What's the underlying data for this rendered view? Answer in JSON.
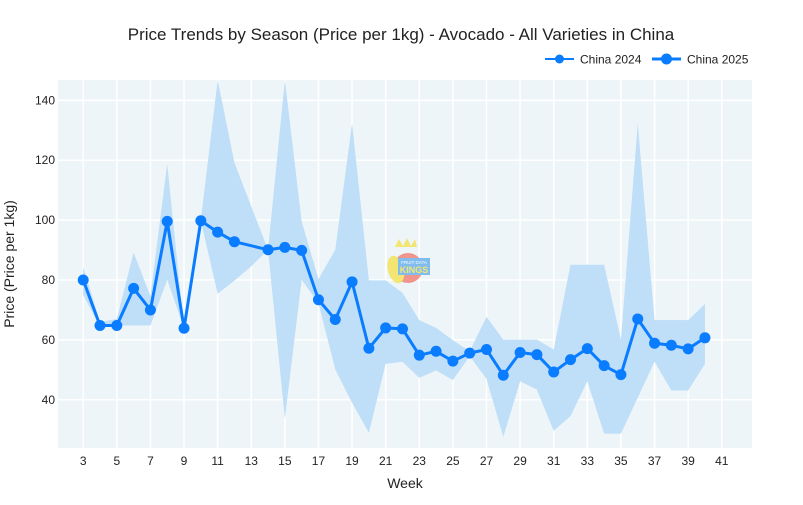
{
  "chart_data": {
    "type": "line",
    "title": "Price Trends by Season (Price per 1kg) - Avocado - All Varieties in China",
    "xlabel": "Week",
    "ylabel": "Price (Price per 1kg)",
    "xlim": [
      1.5,
      42.8
    ],
    "ylim": [
      23.9,
      146.8
    ],
    "x_ticks": [
      3,
      5,
      7,
      9,
      11,
      13,
      15,
      17,
      19,
      21,
      23,
      25,
      27,
      29,
      31,
      33,
      35,
      37,
      39,
      41
    ],
    "y_ticks": [
      40,
      60,
      80,
      100,
      120,
      140
    ],
    "grid": true,
    "legend_position": "top-right",
    "colors": {
      "line": "#0a7cff",
      "band": "#bcdcf7",
      "plot_bg": "#eef5f9",
      "grid": "#ffffff"
    },
    "legend": [
      {
        "name": "China 2024",
        "style": "thin"
      },
      {
        "name": "China 2025",
        "style": "thick"
      }
    ],
    "series": [
      {
        "name": "China 2025",
        "x": [
          3,
          4,
          5,
          6,
          7,
          8,
          9,
          10,
          11,
          12,
          14,
          15,
          16,
          17,
          18,
          19,
          20,
          21,
          22,
          23,
          24,
          25,
          26,
          27,
          28,
          29,
          30,
          31,
          32,
          33,
          34,
          35,
          36,
          37,
          38,
          39,
          40
        ],
        "values": [
          80,
          64.8,
          64.8,
          77.2,
          70,
          99.6,
          63.9,
          99.8,
          96,
          92.8,
          90.1,
          90.9,
          89.9,
          73.4,
          66.8,
          79.4,
          57.2,
          64,
          63.7,
          54.9,
          56.2,
          52.9,
          55.6,
          56.8,
          48.2,
          55.8,
          55.1,
          49.3,
          53.4,
          57.1,
          51.4,
          48.4,
          67,
          58.9,
          58.2,
          57,
          60.7
        ]
      }
    ],
    "band": {
      "x": [
        3,
        4,
        5,
        6,
        7,
        8,
        9,
        10,
        11,
        12,
        13,
        14,
        15,
        16,
        17,
        18,
        19,
        20,
        21,
        22,
        23,
        24,
        25,
        26,
        27,
        28,
        29,
        30,
        31,
        32,
        33,
        34,
        35,
        36,
        37,
        38,
        39,
        40
      ],
      "upper": [
        84.3,
        66,
        67,
        89.2,
        74.6,
        118.8,
        63.9,
        100,
        148,
        119.2,
        104.6,
        90.1,
        147,
        99.6,
        80.3,
        90.1,
        132.3,
        79.9,
        79.9,
        75.7,
        66.6,
        64,
        59.9,
        56.2,
        67.7,
        60.1,
        60.1,
        60.1,
        56.8,
        85.1,
        85.1,
        85.1,
        60.1,
        132.3,
        66.6,
        66.6,
        66.6,
        72
      ],
      "lower": [
        75,
        64.5,
        64.8,
        64.8,
        64.8,
        80.1,
        63.9,
        99.8,
        75.4,
        79.8,
        84.6,
        90.1,
        33.7,
        80.1,
        72.3,
        50.1,
        39,
        29,
        52,
        52.7,
        47.3,
        49.8,
        46.6,
        54.6,
        47,
        27.6,
        46.2,
        43.4,
        29.6,
        34.6,
        46.2,
        28.7,
        28.7,
        40.7,
        52.7,
        43.1,
        43.1,
        52
      ]
    },
    "watermark": "FRUIT DATA KINGS"
  }
}
